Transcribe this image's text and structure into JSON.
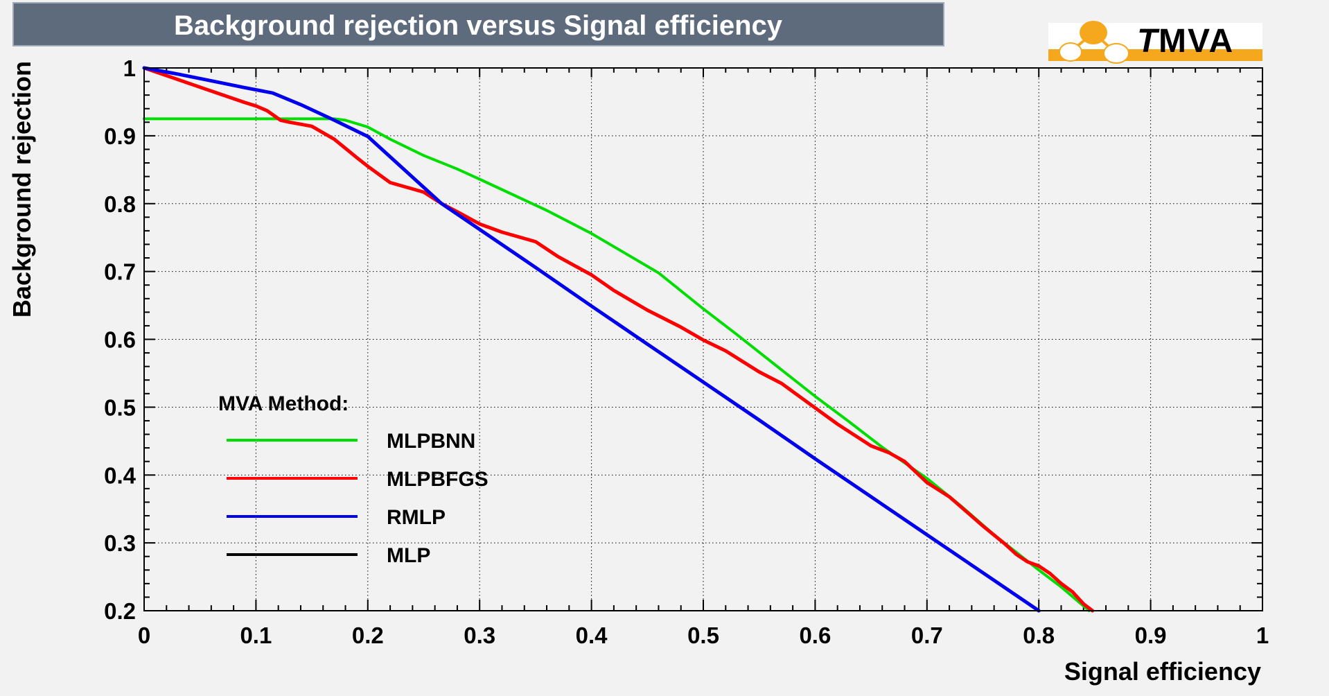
{
  "header": {
    "title": "Background rejection versus Signal efficiency"
  },
  "logo": {
    "t": "T",
    "mva": "MVA",
    "orange": "#F5A81E",
    "navy": "#333388",
    "t_red": "#E01010"
  },
  "title_bar": {
    "fill": "#5d6b7c",
    "border": "#9fabb8"
  },
  "axes": {
    "x_title": "Signal efficiency",
    "y_title": "Background rejection",
    "x_tick_labels": [
      "0",
      "0.1",
      "0.2",
      "0.3",
      "0.4",
      "0.5",
      "0.6",
      "0.7",
      "0.8",
      "0.9",
      "1"
    ],
    "y_tick_labels": [
      "0.2",
      "0.3",
      "0.4",
      "0.5",
      "0.6",
      "0.7",
      "0.8",
      "0.9",
      "1"
    ]
  },
  "legend": {
    "title": "MVA Method:",
    "items": [
      {
        "label": "MLPBNN",
        "color": "#00dd00"
      },
      {
        "label": "MLPBFGS",
        "color": "#ff0000"
      },
      {
        "label": "RMLP",
        "color": "#0000ee"
      },
      {
        "label": "MLP",
        "color": "#000000"
      }
    ]
  },
  "chart_data": {
    "type": "line",
    "title": "Background rejection versus Signal efficiency",
    "xlabel": "Signal efficiency",
    "ylabel": "Background rejection",
    "xlim": [
      0,
      1
    ],
    "ylim": [
      0.2,
      1.0
    ],
    "x_ticks": [
      0,
      0.1,
      0.2,
      0.3,
      0.4,
      0.5,
      0.6,
      0.7,
      0.8,
      0.9,
      1
    ],
    "y_ticks": [
      0.2,
      0.3,
      0.4,
      0.5,
      0.6,
      0.7,
      0.8,
      0.9,
      1
    ],
    "minor_tick_step": 0.02,
    "grid": "dotted",
    "legend_position": "inside-left",
    "series": [
      {
        "name": "MLP",
        "color": "#000000",
        "width": 3,
        "note": "coincides with MLPBFGS curve; hidden beneath it in the plot",
        "x": [
          0,
          0.03,
          0.06,
          0.09,
          0.1,
          0.11,
          0.122,
          0.13,
          0.14,
          0.15,
          0.17,
          0.19,
          0.2,
          0.22,
          0.25,
          0.266,
          0.28,
          0.3,
          0.32,
          0.35,
          0.37,
          0.4,
          0.42,
          0.45,
          0.48,
          0.5,
          0.52,
          0.55,
          0.57,
          0.6,
          0.62,
          0.65,
          0.666,
          0.68,
          0.7,
          0.72,
          0.75,
          0.77,
          0.78,
          0.79,
          0.8,
          0.81,
          0.82,
          0.83,
          0.84,
          0.848
        ],
        "y": [
          1.0,
          0.983,
          0.966,
          0.949,
          0.944,
          0.937,
          0.923,
          0.92,
          0.917,
          0.914,
          0.895,
          0.868,
          0.855,
          0.831,
          0.817,
          0.8,
          0.788,
          0.77,
          0.758,
          0.744,
          0.722,
          0.695,
          0.672,
          0.643,
          0.618,
          0.599,
          0.583,
          0.552,
          0.535,
          0.499,
          0.475,
          0.443,
          0.433,
          0.42,
          0.389,
          0.368,
          0.325,
          0.298,
          0.283,
          0.272,
          0.266,
          0.255,
          0.24,
          0.228,
          0.21,
          0.2
        ]
      },
      {
        "name": "MLPBNN",
        "color": "#00dd00",
        "width": 4,
        "x": [
          0,
          0.02,
          0.05,
          0.08,
          0.1,
          0.12,
          0.14,
          0.16,
          0.17,
          0.18,
          0.2,
          0.22,
          0.25,
          0.28,
          0.3,
          0.33,
          0.36,
          0.4,
          0.43,
          0.46,
          0.5,
          0.53,
          0.56,
          0.6,
          0.63,
          0.66,
          0.7,
          0.73,
          0.76,
          0.8,
          0.82,
          0.845
        ],
        "y": [
          0.925,
          0.925,
          0.925,
          0.925,
          0.925,
          0.925,
          0.925,
          0.925,
          0.925,
          0.923,
          0.913,
          0.895,
          0.871,
          0.851,
          0.836,
          0.813,
          0.79,
          0.756,
          0.727,
          0.698,
          0.645,
          0.607,
          0.568,
          0.516,
          0.479,
          0.441,
          0.395,
          0.355,
          0.312,
          0.26,
          0.235,
          0.2
        ]
      },
      {
        "name": "MLPBFGS",
        "color": "#ff0000",
        "width": 5,
        "x": [
          0,
          0.03,
          0.06,
          0.09,
          0.1,
          0.11,
          0.122,
          0.13,
          0.14,
          0.15,
          0.17,
          0.19,
          0.2,
          0.22,
          0.25,
          0.266,
          0.28,
          0.3,
          0.32,
          0.35,
          0.37,
          0.4,
          0.42,
          0.45,
          0.48,
          0.5,
          0.52,
          0.55,
          0.57,
          0.6,
          0.62,
          0.65,
          0.666,
          0.68,
          0.7,
          0.72,
          0.75,
          0.77,
          0.78,
          0.79,
          0.8,
          0.81,
          0.82,
          0.83,
          0.84,
          0.848
        ],
        "y": [
          1.0,
          0.983,
          0.966,
          0.949,
          0.944,
          0.937,
          0.923,
          0.92,
          0.917,
          0.914,
          0.895,
          0.868,
          0.855,
          0.831,
          0.817,
          0.8,
          0.788,
          0.77,
          0.758,
          0.744,
          0.722,
          0.695,
          0.672,
          0.643,
          0.618,
          0.599,
          0.583,
          0.552,
          0.535,
          0.499,
          0.475,
          0.443,
          0.433,
          0.42,
          0.389,
          0.368,
          0.325,
          0.298,
          0.283,
          0.272,
          0.266,
          0.255,
          0.24,
          0.228,
          0.21,
          0.2
        ]
      },
      {
        "name": "RMLP",
        "color": "#0000ee",
        "width": 5,
        "x": [
          0,
          0.03,
          0.06,
          0.09,
          0.115,
          0.14,
          0.17,
          0.2,
          0.23,
          0.266,
          0.3,
          0.35,
          0.4,
          0.45,
          0.5,
          0.55,
          0.6,
          0.65,
          0.7,
          0.75,
          0.8
        ],
        "y": [
          1.0,
          0.991,
          0.981,
          0.971,
          0.963,
          0.946,
          0.923,
          0.899,
          0.854,
          0.8,
          0.762,
          0.706,
          0.649,
          0.593,
          0.537,
          0.481,
          0.424,
          0.368,
          0.312,
          0.256,
          0.2
        ]
      }
    ]
  }
}
